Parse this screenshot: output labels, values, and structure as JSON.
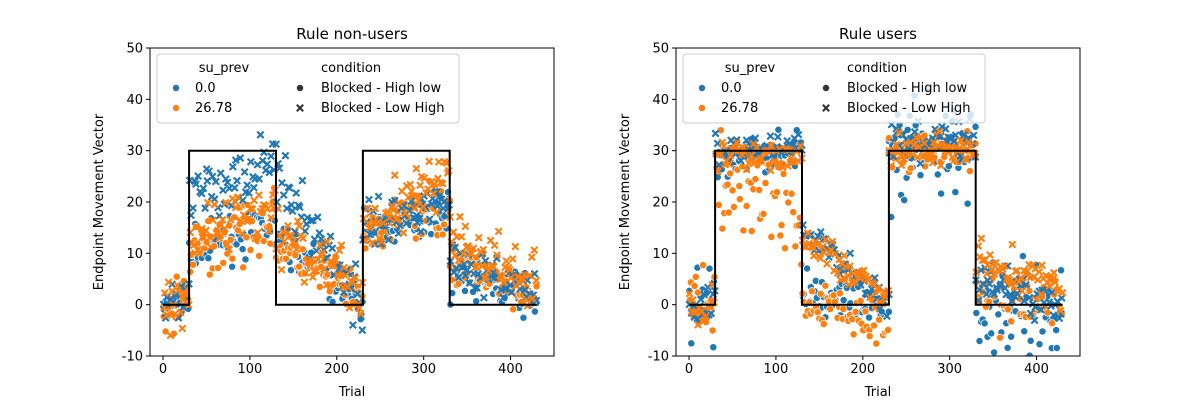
{
  "chart_data": [
    {
      "type": "scatter",
      "title": "Rule non-users",
      "xlabel": "Trial",
      "ylabel": "Endpoint Movement Vector",
      "xlim": [
        -15,
        450
      ],
      "ylim": [
        -10,
        50
      ],
      "xticks": [
        0,
        100,
        200,
        300,
        400
      ],
      "yticks": [
        -10,
        0,
        10,
        20,
        30,
        40,
        50
      ],
      "grid": false,
      "legend_position": "top-left",
      "legend": {
        "hue_title": "su_prev",
        "hue_entries": [
          {
            "label": "0.0",
            "color": "#1f77b4"
          },
          {
            "label": "26.78",
            "color": "#ff7f0e"
          }
        ],
        "style_title": "condition",
        "style_entries": [
          {
            "label": "Blocked - High low",
            "marker": "circle"
          },
          {
            "label": "Blocked - Low High",
            "marker": "x"
          }
        ]
      },
      "reference_line": {
        "x": [
          0,
          30,
          30,
          130,
          130,
          230,
          230,
          330,
          330,
          430
        ],
        "y": [
          0,
          0,
          30,
          30,
          0,
          0,
          30,
          30,
          0,
          0
        ],
        "color": "#000000"
      },
      "series": [
        {
          "name": "0.0",
          "marker": "circle",
          "color": "#1f77b4",
          "segments": [
            [
              0,
              30,
              0,
              0,
              1
            ],
            [
              30,
              130,
              10,
              16,
              2
            ],
            [
              130,
              230,
              13,
              0,
              2
            ],
            [
              230,
              330,
              15,
              19,
              2
            ],
            [
              330,
              430,
              6,
              1,
              2
            ]
          ]
        },
        {
          "name": "26.78",
          "marker": "circle",
          "color": "#ff7f0e",
          "segments": [
            [
              0,
              30,
              -2,
              0,
              3
            ],
            [
              30,
              130,
              10,
              17,
              3
            ],
            [
              130,
              230,
              11,
              1,
              2
            ],
            [
              230,
              330,
              14,
              20,
              3
            ],
            [
              330,
              430,
              8,
              2,
              2
            ]
          ]
        },
        {
          "name": "0.0",
          "marker": "x",
          "color": "#1f77b4",
          "segments": [
            [
              0,
              30,
              0,
              0,
              2
            ],
            [
              30,
              130,
              20,
              29,
              3
            ],
            [
              130,
              230,
              25,
              0,
              3
            ],
            [
              230,
              330,
              15,
              21,
              2
            ],
            [
              330,
              430,
              9,
              2,
              2
            ]
          ]
        },
        {
          "name": "26.78",
          "marker": "x",
          "color": "#ff7f0e",
          "segments": [
            [
              0,
              30,
              -2,
              0,
              3
            ],
            [
              30,
              130,
              13,
              19,
              3
            ],
            [
              130,
              230,
              14,
              2,
              3
            ],
            [
              230,
              330,
              16,
              25,
              3
            ],
            [
              330,
              430,
              13,
              3,
              3
            ]
          ]
        }
      ]
    },
    {
      "type": "scatter",
      "title": "Rule users",
      "xlabel": "Trial",
      "ylabel": "Endpoint Movement Vector",
      "xlim": [
        -15,
        450
      ],
      "ylim": [
        -10,
        50
      ],
      "xticks": [
        0,
        100,
        200,
        300,
        400
      ],
      "yticks": [
        -10,
        0,
        10,
        20,
        30,
        40,
        50
      ],
      "grid": false,
      "legend_position": "top-left",
      "legend": {
        "hue_title": "su_prev",
        "hue_entries": [
          {
            "label": "0.0",
            "color": "#1f77b4"
          },
          {
            "label": "26.78",
            "color": "#ff7f0e"
          }
        ],
        "style_title": "condition",
        "style_entries": [
          {
            "label": "Blocked - High low",
            "marker": "circle"
          },
          {
            "label": "Blocked - Low High",
            "marker": "x"
          }
        ]
      },
      "reference_line": {
        "x": [
          0,
          30,
          30,
          130,
          130,
          230,
          230,
          330,
          330,
          430
        ],
        "y": [
          0,
          0,
          30,
          30,
          0,
          0,
          30,
          30,
          0,
          0
        ],
        "color": "#000000"
      },
      "series": [
        {
          "name": "0.0",
          "marker": "circle",
          "color": "#1f77b4",
          "segments": [
            [
              0,
              30,
              0,
              0,
              4
            ],
            [
              30,
              130,
              28,
              30,
              2
            ],
            [
              130,
              230,
              2,
              0,
              2
            ],
            [
              230,
              330,
              28,
              28,
              6
            ],
            [
              330,
              430,
              -2,
              -2,
              5
            ]
          ]
        },
        {
          "name": "26.78",
          "marker": "circle",
          "color": "#ff7f0e",
          "segments": [
            [
              0,
              30,
              0,
              0,
              4
            ],
            [
              30,
              130,
              26,
              18,
              6
            ],
            [
              130,
              230,
              0,
              -3,
              3
            ],
            [
              230,
              330,
              30,
              30,
              2
            ],
            [
              330,
              430,
              2,
              1,
              3
            ]
          ]
        },
        {
          "name": "0.0",
          "marker": "x",
          "color": "#1f77b4",
          "segments": [
            [
              0,
              30,
              -1,
              0,
              2
            ],
            [
              30,
              130,
              30,
              31,
              1.5
            ],
            [
              130,
              230,
              15,
              0,
              1.5
            ],
            [
              230,
              330,
              31,
              32,
              2
            ],
            [
              330,
              430,
              5,
              0,
              2
            ]
          ]
        },
        {
          "name": "26.78",
          "marker": "x",
          "color": "#ff7f0e",
          "segments": [
            [
              0,
              30,
              0,
              0,
              2
            ],
            [
              30,
              130,
              29,
              29,
              1.5
            ],
            [
              130,
              230,
              13,
              1,
              1.5
            ],
            [
              230,
              330,
              30,
              30,
              1.5
            ],
            [
              330,
              430,
              9,
              3,
              2
            ]
          ]
        }
      ]
    }
  ]
}
